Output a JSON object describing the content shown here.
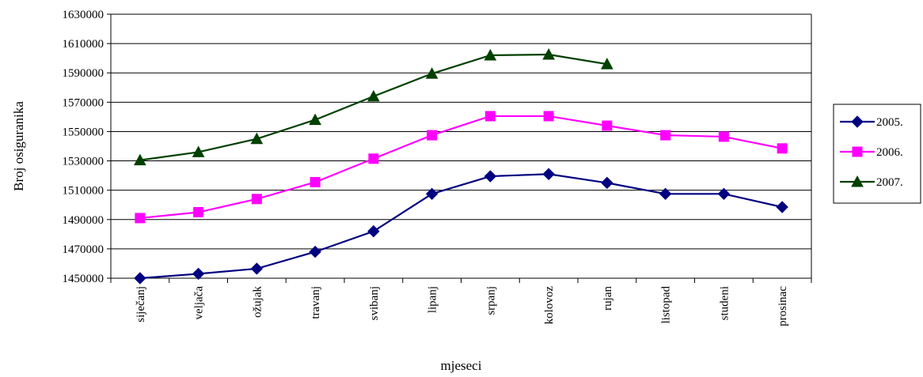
{
  "chart_data": {
    "type": "line",
    "title": "",
    "xlabel": "mjeseci",
    "ylabel": "Broj osiguranika",
    "ylim": [
      1450000,
      1630000
    ],
    "yticks": [
      1450000,
      1470000,
      1490000,
      1510000,
      1530000,
      1550000,
      1570000,
      1590000,
      1610000,
      1630000
    ],
    "grid": "horizontal",
    "legend_position": "right",
    "categories": [
      "siječanj",
      "veljača",
      "ožujak",
      "travanj",
      "svibanj",
      "lipanj",
      "srpanj",
      "kolovoz",
      "rujan",
      "listopad",
      "studeni",
      "prosinac"
    ],
    "series": [
      {
        "name": "2005.",
        "color": "#000080",
        "marker": "diamond",
        "values": [
          1450000,
          1453000,
          1456500,
          1468000,
          1482000,
          1507500,
          1519500,
          1521000,
          1515000,
          1507500,
          1507500,
          1498500
        ]
      },
      {
        "name": "2006.",
        "color": "#FF00FF",
        "marker": "square",
        "values": [
          1491000,
          1495000,
          1504000,
          1515500,
          1531500,
          1547500,
          1560500,
          1560500,
          1554000,
          1547500,
          1546500,
          1538500
        ]
      },
      {
        "name": "2007.",
        "color": "#004000",
        "marker": "triangle",
        "values": [
          1530500,
          1536000,
          1545000,
          1558000,
          1574000,
          1589500,
          1602000,
          1602500,
          1596000,
          null,
          null,
          null
        ]
      }
    ]
  }
}
